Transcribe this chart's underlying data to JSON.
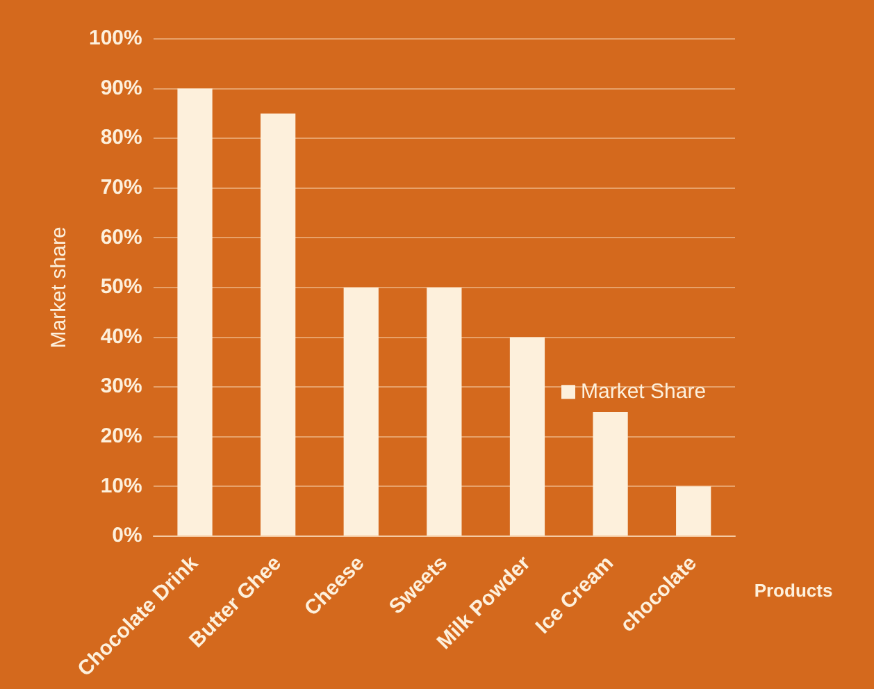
{
  "chart_data": {
    "type": "bar",
    "xlabel": "Products",
    "ylabel": "Market share",
    "categories": [
      "Chocolate Drink",
      "Butter Ghee",
      "Cheese",
      "Sweets",
      "Milk Powder",
      "Ice Cream",
      "chocolate"
    ],
    "series": [
      {
        "name": "Market Share",
        "color": "#fdf0dc",
        "values": [
          90,
          85,
          50,
          50,
          40,
          25,
          10
        ]
      }
    ],
    "ylim": [
      0,
      100
    ],
    "yticks": [
      {
        "value": 0,
        "label": "0%"
      },
      {
        "value": 10,
        "label": "10%"
      },
      {
        "value": 20,
        "label": "20%"
      },
      {
        "value": 30,
        "label": "30%"
      },
      {
        "value": 40,
        "label": "40%"
      },
      {
        "value": 50,
        "label": "50%"
      },
      {
        "value": 60,
        "label": "60%"
      },
      {
        "value": 70,
        "label": "70%"
      },
      {
        "value": 80,
        "label": "80%"
      },
      {
        "value": 90,
        "label": "90%"
      },
      {
        "value": 100,
        "label": "100%"
      }
    ],
    "grid": "y",
    "legend": "right"
  }
}
